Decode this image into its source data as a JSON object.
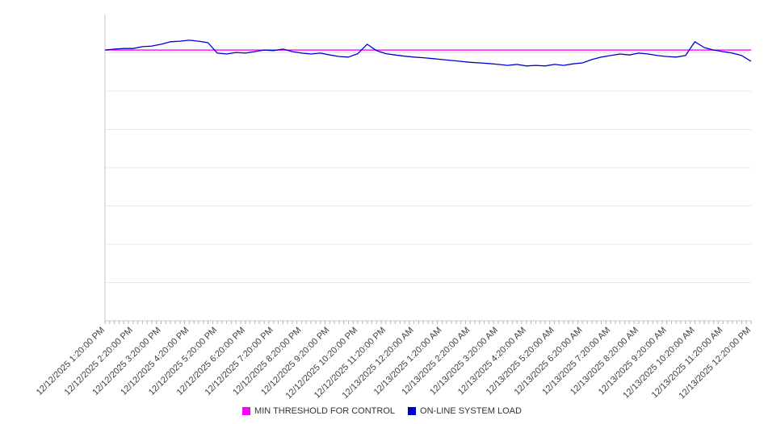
{
  "page": {
    "background": "#ffffff"
  },
  "legend": {
    "items": [
      {
        "label": "MIN THRESHOLD FOR CONTROL",
        "color": "#ff00ff"
      },
      {
        "label": "ON-LINE SYSTEM LOAD",
        "color": "#0000cd"
      }
    ]
  },
  "chart_data": {
    "type": "line",
    "title": "",
    "xlabel": "",
    "ylabel": "",
    "grid": "horizontal",
    "y_axis_labels_visible": false,
    "legend_position": "bottom-center",
    "ylim": [
      0,
      100
    ],
    "y_gridline_divisions": 8,
    "minor_ticks_per_interval": 6,
    "colors": {
      "grid": "#e9e9e9",
      "axis": "#c9c9c9",
      "tick": "#b5b5b5",
      "label": "#404040"
    },
    "x_labels": [
      "12/12/2025 1:20:00 PM",
      "12/12/2025 2:20:00 PM",
      "12/12/2025 3:20:00 PM",
      "12/12/2025 4:20:00 PM",
      "12/12/2025 5:20:00 PM",
      "12/12/2025 6:20:00 PM",
      "12/12/2025 7:20:00 PM",
      "12/12/2025 8:20:00 PM",
      "12/12/2025 9:20:00 PM",
      "12/12/2025 10:20:00 PM",
      "12/12/2025 11:20:00 PM",
      "12/13/2025 12:20:00 AM",
      "12/13/2025 1:20:00 AM",
      "12/13/2025 2:20:00 AM",
      "12/13/2025 3:20:00 AM",
      "12/13/2025 4:20:00 AM",
      "12/13/2025 5:20:00 AM",
      "12/13/2025 6:20:00 AM",
      "12/13/2025 7:20:00 AM",
      "12/13/2025 8:20:00 AM",
      "12/13/2025 9:20:00 AM",
      "12/13/2025 10:20:00 AM",
      "12/13/2025 11:20:00 AM",
      "12/13/2025 12:20:00 PM"
    ],
    "series": [
      {
        "name": "MIN THRESHOLD FOR CONTROL",
        "data_name": "threshold-line",
        "color": "#ff00ff",
        "width": 1.4,
        "constant": 88.4
      },
      {
        "name": "ON-LINE SYSTEM LOAD",
        "data_name": "system-load-line",
        "color": "#0000cd",
        "width": 1.3,
        "values": [
          88.4,
          88.7,
          88.9,
          88.9,
          89.5,
          89.7,
          90.3,
          91.1,
          91.3,
          91.6,
          91.3,
          90.8,
          87.4,
          87.1,
          87.6,
          87.4,
          87.9,
          88.4,
          88.2,
          88.7,
          87.9,
          87.4,
          87.1,
          87.4,
          86.8,
          86.3,
          86.1,
          87.2,
          90.3,
          88.2,
          87.2,
          86.8,
          86.4,
          86.1,
          85.9,
          85.6,
          85.3,
          85.0,
          84.7,
          84.4,
          84.2,
          84.0,
          83.7,
          83.4,
          83.7,
          83.2,
          83.4,
          83.2,
          83.7,
          83.4,
          83.9,
          84.2,
          85.3,
          86.1,
          86.6,
          87.1,
          86.8,
          87.4,
          87.1,
          86.6,
          86.3,
          86.1,
          86.6,
          91.1,
          89.2,
          88.4,
          87.9,
          87.4,
          86.6,
          84.7
        ]
      }
    ]
  }
}
